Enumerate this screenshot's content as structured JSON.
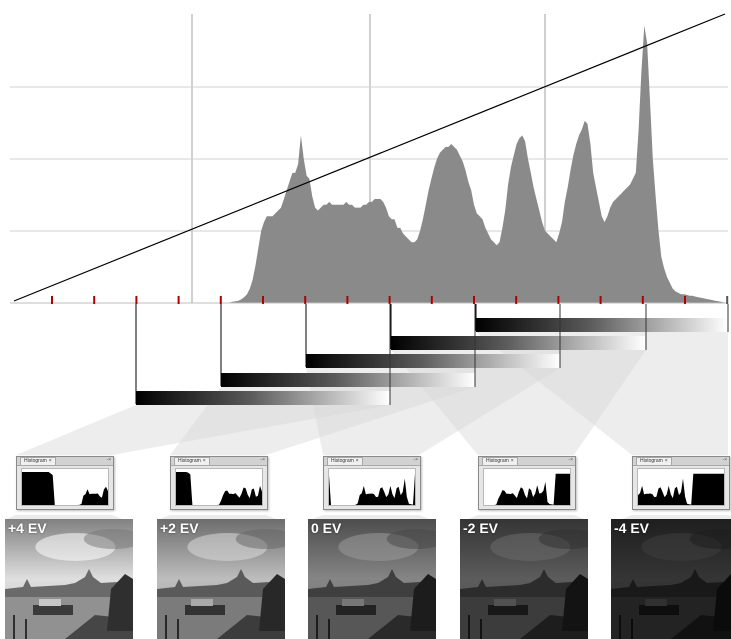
{
  "histogram_panel_title": "Histogram",
  "histogram_close_glyph": "×",
  "window_button_glyphs": "-×",
  "exposures": [
    {
      "ev_label": "+4 EV",
      "shift": 4,
      "brightness": 0.92
    },
    {
      "ev_label": "+2 EV",
      "shift": 2,
      "brightness": 0.78
    },
    {
      "ev_label": "0 EV",
      "shift": 0,
      "brightness": 0.55
    },
    {
      "ev_label": "-2 EV",
      "shift": -2,
      "brightness": 0.38
    },
    {
      "ev_label": "-4 EV",
      "shift": -4,
      "brightness": 0.22
    }
  ],
  "colors": {
    "histogram_fill": "#8a8a8a",
    "gridline": "#d0d0d0",
    "tick_marker": "#b00000",
    "curve": "#000000",
    "connector": "#d8d8d8"
  },
  "chart_data": {
    "type": "area",
    "title": "",
    "xlabel": "",
    "ylabel": "",
    "grid": true,
    "tick_count": 17,
    "xlim": [
      0,
      1
    ],
    "ylim": [
      0,
      1
    ],
    "values": [
      0,
      0,
      0,
      0,
      0,
      0,
      0,
      0,
      0,
      0,
      0,
      0,
      0,
      0,
      0,
      0,
      0,
      0,
      0,
      0,
      0,
      0,
      0,
      0,
      0,
      0,
      0,
      0,
      0,
      0,
      0,
      0,
      0,
      0,
      0,
      0,
      0,
      0,
      0,
      0,
      0,
      0,
      0,
      0,
      0,
      0,
      0,
      0,
      0,
      0,
      0,
      0,
      0,
      0,
      0,
      0,
      0,
      0,
      0,
      0,
      0,
      0,
      0,
      0,
      0,
      0,
      0,
      0,
      0,
      0,
      0,
      0,
      0,
      0,
      0,
      0,
      0,
      0.002,
      0.004,
      0.006,
      0.008,
      0.013,
      0.02,
      0.03,
      0.05,
      0.08,
      0.13,
      0.19,
      0.25,
      0.28,
      0.3,
      0.3,
      0.3,
      0.31,
      0.32,
      0.33,
      0.36,
      0.39,
      0.42,
      0.45,
      0.45,
      0.48,
      0.58,
      0.5,
      0.44,
      0.43,
      0.37,
      0.33,
      0.32,
      0.33,
      0.34,
      0.34,
      0.35,
      0.34,
      0.34,
      0.34,
      0.34,
      0.34,
      0.35,
      0.34,
      0.34,
      0.33,
      0.33,
      0.33,
      0.34,
      0.34,
      0.35,
      0.35,
      0.36,
      0.36,
      0.36,
      0.35,
      0.33,
      0.3,
      0.29,
      0.29,
      0.26,
      0.26,
      0.24,
      0.23,
      0.22,
      0.21,
      0.21,
      0.22,
      0.25,
      0.29,
      0.34,
      0.39,
      0.43,
      0.47,
      0.5,
      0.52,
      0.53,
      0.54,
      0.54,
      0.55,
      0.54,
      0.53,
      0.51,
      0.49,
      0.46,
      0.42,
      0.39,
      0.34,
      0.31,
      0.3,
      0.29,
      0.26,
      0.24,
      0.22,
      0.21,
      0.2,
      0.21,
      0.26,
      0.32,
      0.41,
      0.47,
      0.51,
      0.55,
      0.57,
      0.58,
      0.56,
      0.5,
      0.45,
      0.4,
      0.36,
      0.32,
      0.28,
      0.25,
      0.24,
      0.23,
      0.22,
      0.21,
      0.24,
      0.28,
      0.35,
      0.4,
      0.46,
      0.51,
      0.55,
      0.58,
      0.6,
      0.63,
      0.62,
      0.55,
      0.45,
      0.4,
      0.35,
      0.3,
      0.28,
      0.3,
      0.33,
      0.35,
      0.36,
      0.37,
      0.38,
      0.39,
      0.4,
      0.41,
      0.43,
      0.45,
      0.6,
      0.8,
      0.96,
      0.9,
      0.7,
      0.5,
      0.37,
      0.25,
      0.16,
      0.12,
      0.09,
      0.07,
      0.05,
      0.04,
      0.035,
      0.03,
      0.03,
      0.028,
      0.025,
      0.025,
      0.022,
      0.02,
      0.018,
      0.016,
      0.014,
      0.012,
      0.01,
      0.008,
      0.006,
      0.004,
      0.002,
      0.001
    ]
  }
}
